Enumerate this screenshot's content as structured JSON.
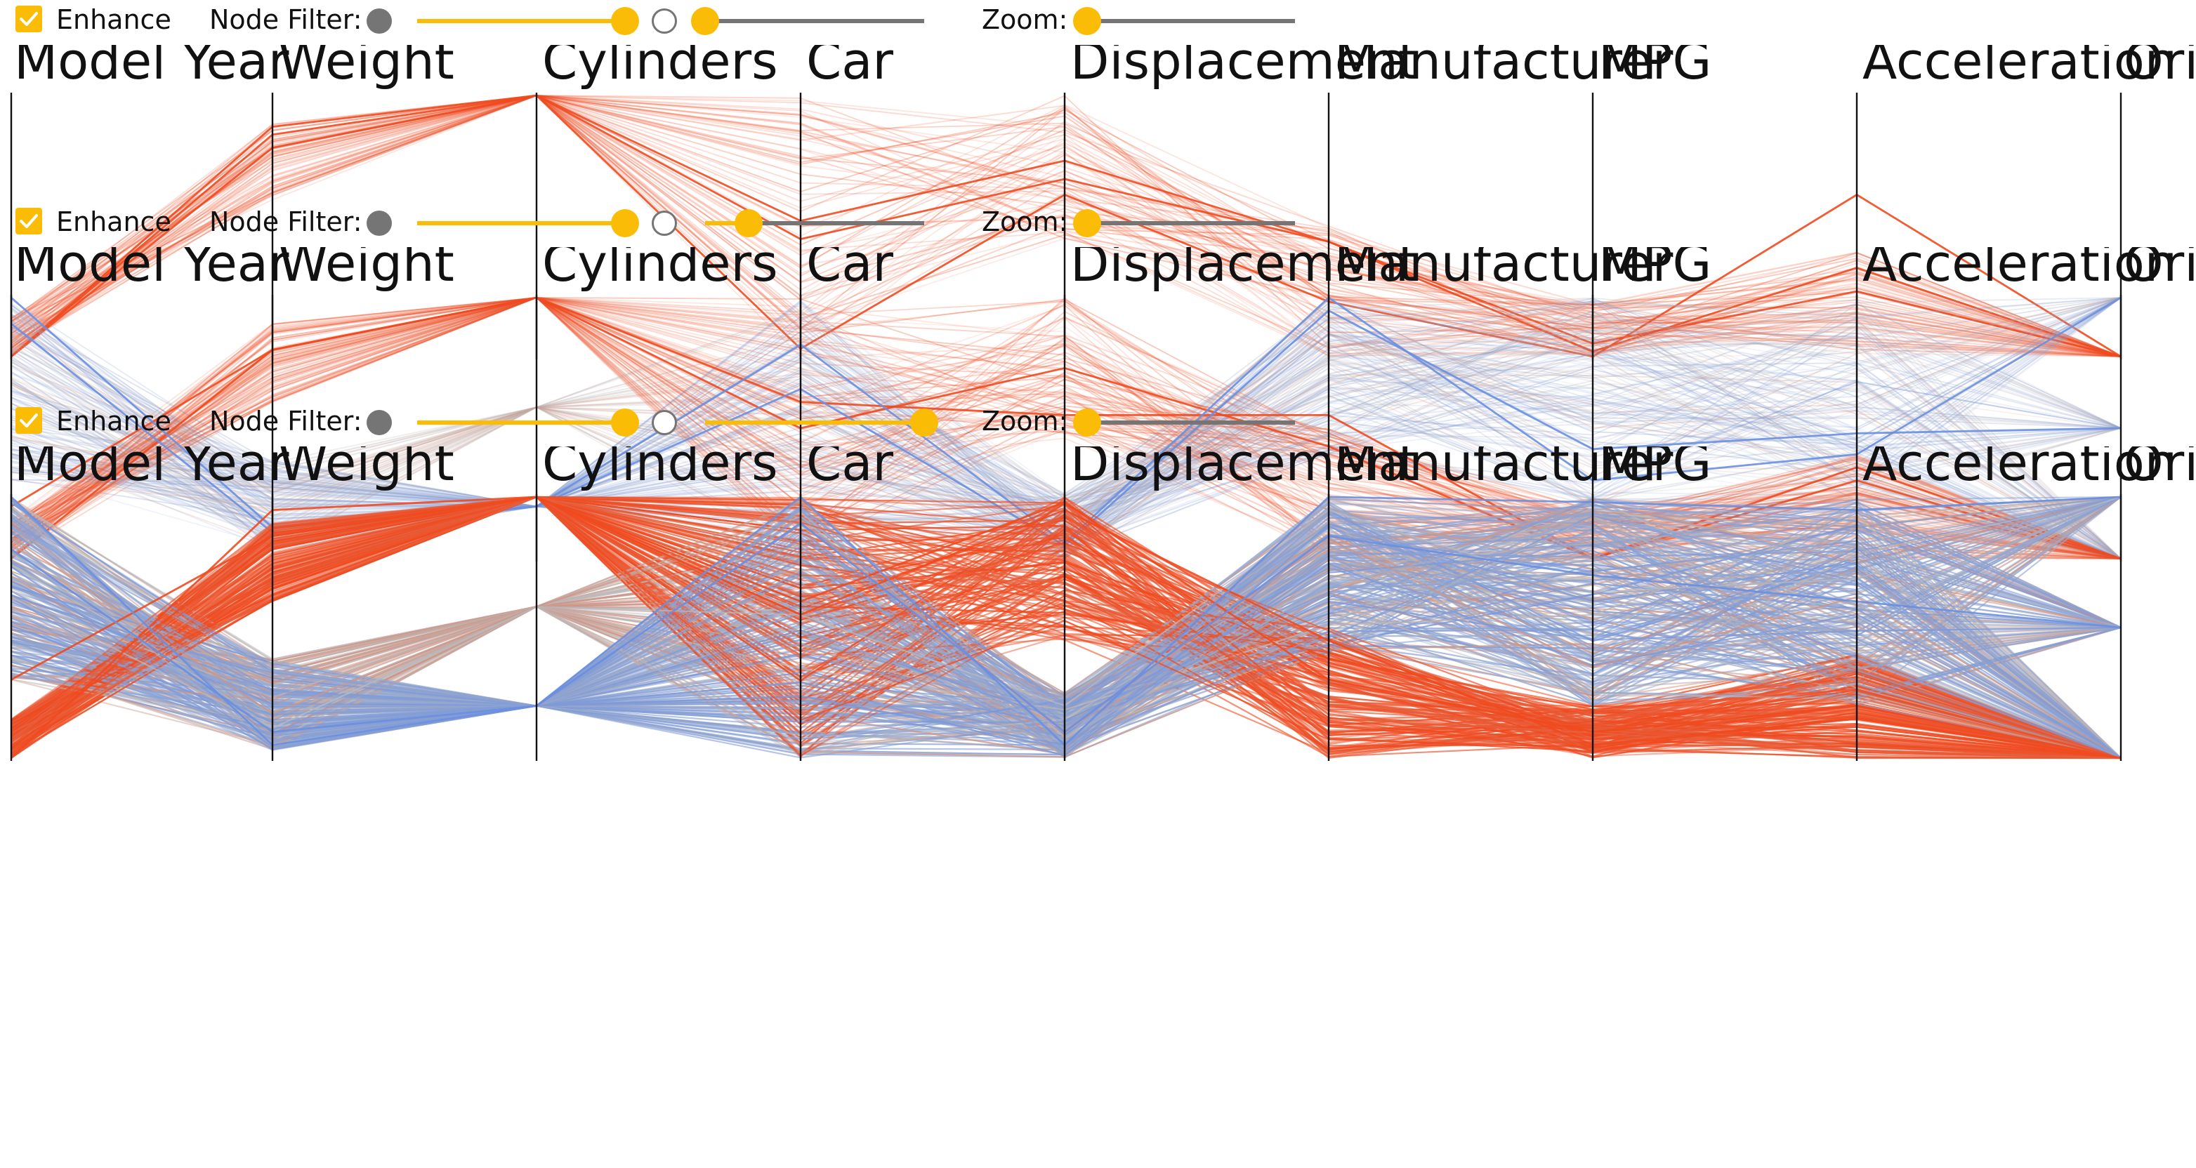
{
  "panels": [
    {
      "enhance": {
        "label": "Enhance",
        "checked": true
      },
      "node_filter": {
        "label": "Node Filter:",
        "value": 1.0
      },
      "edge_filter": {
        "value": 0.0
      },
      "zoom": {
        "label": "Zoom:",
        "value": 0.0
      }
    },
    {
      "enhance": {
        "label": "Enhance",
        "checked": true
      },
      "node_filter": {
        "label": "Node Filter:",
        "value": 1.0
      },
      "edge_filter": {
        "value": 0.2
      },
      "zoom": {
        "label": "Zoom:",
        "value": 0.0
      }
    },
    {
      "enhance": {
        "label": "Enhance",
        "checked": true
      },
      "node_filter": {
        "label": "Node Filter:",
        "value": 1.0
      },
      "edge_filter": {
        "value": 1.0
      },
      "zoom": {
        "label": "Zoom:",
        "value": 0.0
      }
    }
  ],
  "colors": {
    "accent": "#fbbc05",
    "track": "#757575",
    "high": "#f04a1f",
    "mid": "#bdbdbd",
    "low": "#6a8fe0",
    "axis": "#111111"
  },
  "chart_data": [
    {
      "type": "parallel-coordinates",
      "title": "",
      "axes": [
        "Model Year",
        "Weight",
        "Cylinders",
        "Car",
        "Displacement",
        "Manufacturer",
        "MPG",
        "Acceleration",
        "Origin"
      ],
      "axis_range": [
        0,
        1
      ],
      "colored_by": "Cylinders",
      "highlighted_polylines": [
        [
          0.0,
          0.85,
          1.0,
          0.52,
          0.75,
          0.44,
          0.02,
          0.34,
          0.0
        ],
        [
          0.0,
          0.8,
          1.0,
          0.45,
          0.68,
          0.44,
          0.05,
          0.25,
          0.0
        ],
        [
          0.0,
          0.88,
          1.0,
          0.03,
          0.62,
          0.21,
          0.0,
          0.62,
          0.0
        ]
      ]
    },
    {
      "type": "parallel-coordinates",
      "title": "",
      "axes": [
        "Model Year",
        "Weight",
        "Cylinders",
        "Car",
        "Displacement",
        "Manufacturer",
        "MPG",
        "Acceleration",
        "Origin"
      ],
      "axis_range": [
        0,
        1
      ],
      "colored_by": "Cylinders",
      "highlighted_polylines": [
        [
          0.0,
          0.8,
          1.0,
          0.5,
          0.73,
          0.43,
          0.0,
          0.35,
          0.0
        ],
        [
          0.2,
          0.8,
          1.0,
          0.6,
          0.55,
          0.55,
          0.0,
          0.3,
          0.0
        ],
        [
          1.0,
          0.12,
          0.2,
          0.82,
          0.06,
          1.0,
          0.3,
          0.4,
          1.0
        ],
        [
          0.9,
          0.1,
          0.2,
          0.65,
          0.05,
          0.95,
          0.42,
          0.48,
          0.5
        ]
      ]
    },
    {
      "type": "parallel-coordinates",
      "title": "",
      "axes": [
        "Model Year",
        "Weight",
        "Cylinders",
        "Car",
        "Displacement",
        "Manufacturer",
        "MPG",
        "Acceleration",
        "Origin"
      ],
      "axis_range": [
        0,
        1
      ],
      "colored_by": "Cylinders",
      "highlighted_polylines": [
        [
          0.0,
          0.95,
          1.0,
          0.55,
          0.95,
          0.45,
          0.05,
          0.15,
          0.0
        ],
        [
          0.3,
          0.85,
          1.0,
          0.6,
          0.98,
          0.3,
          0.1,
          0.2,
          0.0
        ],
        [
          1.0,
          0.05,
          0.2,
          1.0,
          0.05,
          1.0,
          0.98,
          0.95,
          1.0
        ],
        [
          0.8,
          0.1,
          0.2,
          0.9,
          0.1,
          0.85,
          0.7,
          0.6,
          0.5
        ]
      ]
    }
  ]
}
